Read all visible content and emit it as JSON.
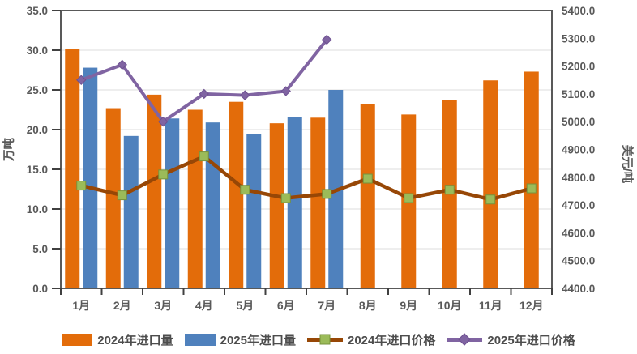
{
  "chart_data": {
    "type": "combo (grouped bar + dual-axis line)",
    "title": "",
    "categories": [
      "1月",
      "2月",
      "3月",
      "4月",
      "5月",
      "6月",
      "7月",
      "8月",
      "9月",
      "10月",
      "11月",
      "12月"
    ],
    "series": [
      {
        "name": "2024年进口量",
        "chart_type": "bar",
        "axis": "left",
        "unit": "万吨",
        "color": "#E36C0A",
        "values": [
          30.2,
          22.7,
          24.4,
          22.5,
          23.5,
          20.8,
          21.5,
          23.2,
          21.9,
          23.7,
          26.2,
          27.3
        ]
      },
      {
        "name": "2025年进口量",
        "chart_type": "bar",
        "axis": "left",
        "unit": "万吨",
        "color": "#4F81BD",
        "values": [
          27.8,
          19.2,
          21.4,
          20.9,
          19.4,
          21.6,
          25.0,
          null,
          null,
          null,
          null,
          null
        ]
      },
      {
        "name": "2024年进口价格",
        "chart_type": "line",
        "axis": "right",
        "unit": "美元/吨",
        "color": "#974706",
        "marker": "square",
        "marker_color": "#9BBB59",
        "marker_border": "#77933C",
        "values": [
          4770,
          4735,
          4810,
          4875,
          4755,
          4725,
          4740,
          4795,
          4725,
          4755,
          4720,
          4760
        ]
      },
      {
        "name": "2025年进口价格",
        "chart_type": "line",
        "axis": "right",
        "unit": "美元/吨",
        "color": "#8064A2",
        "marker": "diamond",
        "marker_color": "#8064A2",
        "marker_border": "#6E5191",
        "values": [
          5150,
          5205,
          5000,
          5100,
          5095,
          5110,
          5295,
          null,
          null,
          null,
          null,
          null
        ]
      }
    ],
    "left_axis": {
      "label": "万吨",
      "min": 0,
      "max": 35,
      "step": 5,
      "ticks": [
        "0.0",
        "5.0",
        "10.0",
        "15.0",
        "20.0",
        "25.0",
        "30.0",
        "35.0"
      ]
    },
    "right_axis": {
      "label": "美元/吨",
      "min": 4400,
      "max": 5400,
      "step": 100,
      "ticks": [
        "4400.0",
        "4500.0",
        "4600.0",
        "4700.0",
        "4800.0",
        "4900.0",
        "5000.0",
        "5100.0",
        "5200.0",
        "5300.0",
        "5400.0"
      ]
    },
    "grid": true,
    "plot_border": true,
    "legend_position": "bottom"
  },
  "style": {
    "axis_text_color": "#595959",
    "grid_color": "#E3E3E3",
    "border_color": "#595959",
    "tick_color": "#404040",
    "background": "#FFFFFF"
  }
}
